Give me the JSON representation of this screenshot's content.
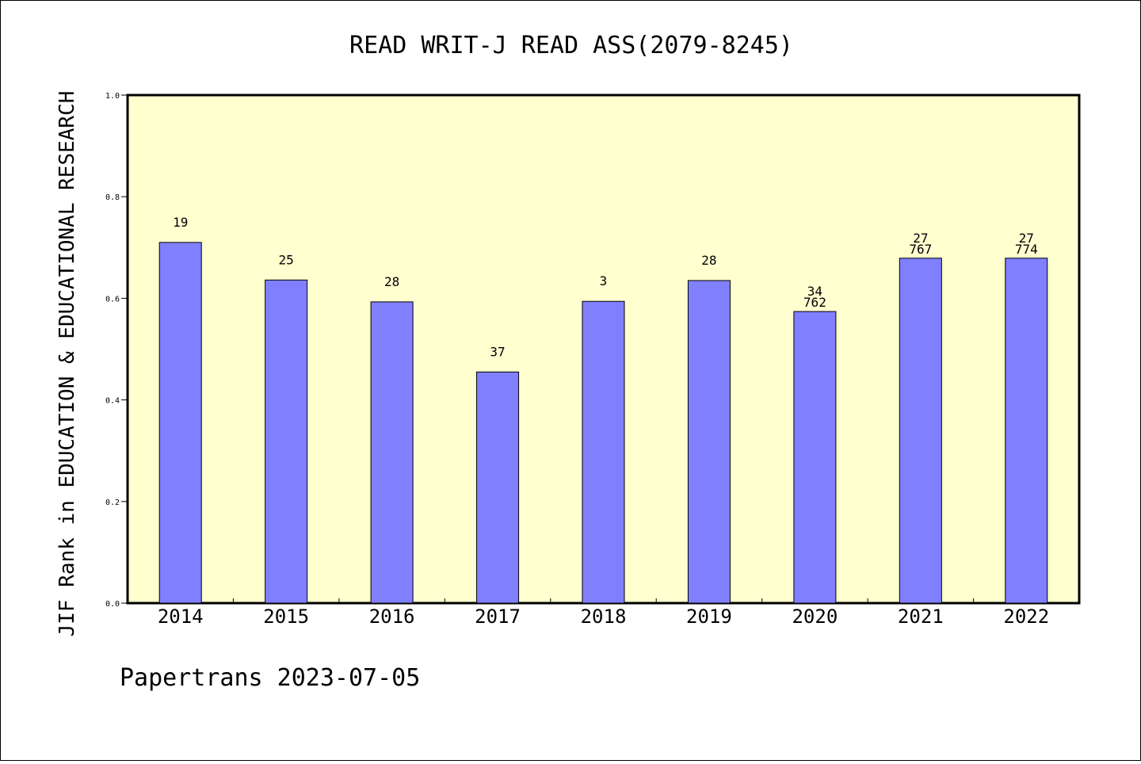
{
  "chart_data": {
    "type": "bar",
    "title": "READ WRIT-J READ ASS(2079-8245)",
    "ylabel": "JIF Rank in EDUCATION & EDUCATIONAL RESEARCH",
    "xlabel": "",
    "categories": [
      "2014",
      "2015",
      "2016",
      "2017",
      "2018",
      "2019",
      "2020",
      "2021",
      "2022"
    ],
    "values": [
      0.71,
      0.636,
      0.593,
      0.455,
      0.594,
      0.635,
      0.574,
      0.679,
      0.679
    ],
    "data_labels": [
      [
        "19"
      ],
      [
        "25"
      ],
      [
        "28"
      ],
      [
        "37"
      ],
      [
        "3"
      ],
      [
        "28"
      ],
      [
        "34",
        "762"
      ],
      [
        "27",
        "767"
      ],
      [
        "27",
        "774"
      ]
    ],
    "ylim": [
      0,
      1.0
    ],
    "yticks": [
      "0.0",
      "0.2",
      "0.4",
      "0.6",
      "0.8",
      "1.0"
    ],
    "grid": false,
    "bar_color": "#8080ff",
    "plot_background": "#ffffd0"
  },
  "footer": "Papertrans 2023-07-05"
}
